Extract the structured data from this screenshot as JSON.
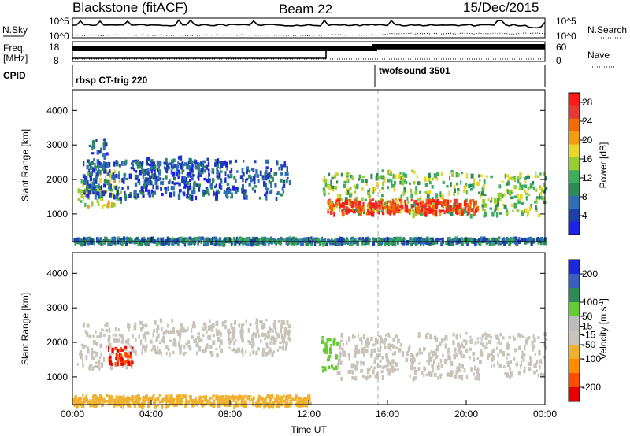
{
  "header": {
    "station": "Blackstone (fitACF)",
    "beam": "Beam 22",
    "date": "15/Dec/2015"
  },
  "labels": {
    "nsky": "N.Sky",
    "nsearch": "N.Search",
    "freq": "Freq.",
    "freq_unit": "[MHz]",
    "nave": "Nave",
    "cpid": "CPID",
    "ylabel": "Slant Range [km]",
    "xlabel": "Time UT"
  },
  "cpid_segments": [
    {
      "label": "rbsp CT-trig 220",
      "start_hour": 0.0
    },
    {
      "label": "twofsound 3501",
      "start_hour": 15.6
    }
  ],
  "noise_axis": {
    "top": "10^5",
    "bottom": "10^0"
  },
  "freq_axis": {
    "left": [
      "18",
      "8"
    ],
    "right": [
      "60",
      "0"
    ]
  },
  "colors": {
    "power_scale": [
      "#1e22e6",
      "#1e3fa8",
      "#2f6fb6",
      "#2e8b57",
      "#3cae5e",
      "#9acd32",
      "#e8d72a",
      "#f39c12",
      "#ef6c00",
      "#e53935",
      "#ff1a1a"
    ],
    "velocity_scale": [
      "#e60000",
      "#ff4d00",
      "#ff8c00",
      "#f0b030",
      "#c8c3bb",
      "#bdbdbd",
      "#66cc33",
      "#2e8b57",
      "#3a5fbf",
      "#1a2ad8"
    ],
    "velocity_gray": "#c8c3bb"
  },
  "chart_data": [
    {
      "type": "heatmap",
      "name": "power",
      "x_unit": "hour UT",
      "xlim": [
        0,
        24
      ],
      "ylim": [
        200,
        4600
      ],
      "xticks": [
        "00:00",
        "04:00",
        "08:00",
        "12:00",
        "16:00",
        "20:00",
        "00:00"
      ],
      "yticks": [
        1000,
        2000,
        3000,
        4000
      ],
      "colorbar": {
        "label": "Power [dB]",
        "ticks": [
          4,
          8,
          12,
          16,
          20,
          24,
          28
        ],
        "range": [
          0,
          30
        ]
      },
      "bands": [
        {
          "x": [
            0.2,
            2.5
          ],
          "y": [
            1250,
            2300
          ],
          "value": 16
        },
        {
          "x": [
            0.5,
            11.0
          ],
          "y": [
            1500,
            2600
          ],
          "value": 6
        },
        {
          "x": [
            0.8,
            1.8
          ],
          "y": [
            2200,
            3200
          ],
          "value": 6
        },
        {
          "x": [
            3.0,
            8.0
          ],
          "y": [
            1600,
            2700
          ],
          "value": 5
        },
        {
          "x": [
            12.7,
            24.0
          ],
          "y": [
            1000,
            2300
          ],
          "value": 14
        },
        {
          "x": [
            12.9,
            20.5
          ],
          "y": [
            1050,
            1450
          ],
          "value": 26
        },
        {
          "x": [
            0,
            24.0
          ],
          "y": [
            200,
            350
          ],
          "value": 8
        }
      ]
    },
    {
      "type": "heatmap",
      "name": "velocity",
      "x_unit": "hour UT",
      "xlim": [
        0,
        24
      ],
      "ylim": [
        200,
        4600
      ],
      "xticks": [
        "00:00",
        "04:00",
        "08:00",
        "12:00",
        "16:00",
        "20:00",
        "00:00"
      ],
      "yticks": [
        1000,
        2000,
        3000,
        4000
      ],
      "colorbar": {
        "label": "Velocity [m s^-1]",
        "ticks": [
          200,
          100,
          50,
          15,
          -15,
          -50,
          -100,
          -200
        ],
        "range": [
          -250,
          250
        ]
      },
      "bands": [
        {
          "x": [
            0.2,
            3.0
          ],
          "y": [
            1300,
            2600
          ],
          "value": -40
        },
        {
          "x": [
            1.8,
            3.0
          ],
          "y": [
            1400,
            1900
          ],
          "value": -200
        },
        {
          "x": [
            3.0,
            11.0
          ],
          "y": [
            1700,
            2700
          ],
          "value": -40
        },
        {
          "x": [
            12.6,
            13.4
          ],
          "y": [
            1200,
            2200
          ],
          "value": 60
        },
        {
          "x": [
            13.4,
            24.0
          ],
          "y": [
            1000,
            2300
          ],
          "value": 0
        },
        {
          "x": [
            0,
            12.0
          ],
          "y": [
            200,
            500
          ],
          "value": -60
        }
      ]
    }
  ]
}
